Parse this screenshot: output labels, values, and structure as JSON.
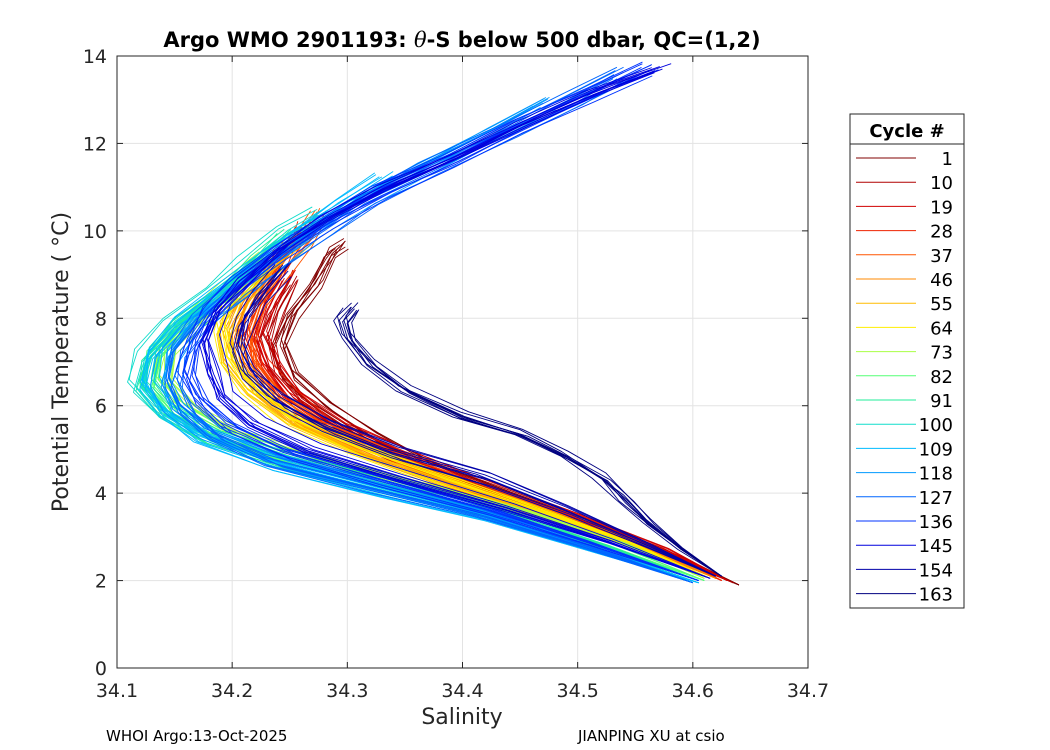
{
  "chart_data": {
    "type": "line",
    "title_prefix": "Argo WMO 2901193: ",
    "title_theta": "θ",
    "title_suffix": "-S below 500 dbar,  QC=(1,2)",
    "xlabel": "Salinity",
    "ylabel": "Potential Temperature ( °C)",
    "xlim": [
      34.1,
      34.7
    ],
    "ylim": [
      0,
      14
    ],
    "xticks": [
      34.1,
      34.2,
      34.3,
      34.4,
      34.5,
      34.6,
      34.7
    ],
    "xtick_labels": [
      "34.1",
      "34.2",
      "34.3",
      "34.4",
      "34.5",
      "34.6",
      "34.7"
    ],
    "yticks": [
      0,
      2,
      4,
      6,
      8,
      10,
      12,
      14
    ],
    "ytick_labels": [
      "0",
      "2",
      "4",
      "6",
      "8",
      "10",
      "12",
      "14"
    ],
    "grid": true,
    "legend_title": "Cycle #",
    "legend_position": "outside-right",
    "legend": [
      {
        "label": "1",
        "color": "#800000"
      },
      {
        "label": "10",
        "color": "#b00000"
      },
      {
        "label": "19",
        "color": "#d00000"
      },
      {
        "label": "28",
        "color": "#ee2200"
      },
      {
        "label": "37",
        "color": "#ff5500"
      },
      {
        "label": "46",
        "color": "#ff8800"
      },
      {
        "label": "55",
        "color": "#ffbb00"
      },
      {
        "label": "64",
        "color": "#ffee00"
      },
      {
        "label": "73",
        "color": "#aaff44"
      },
      {
        "label": "82",
        "color": "#55ff77"
      },
      {
        "label": "91",
        "color": "#22ee99"
      },
      {
        "label": "100",
        "color": "#11ddcc"
      },
      {
        "label": "109",
        "color": "#00bbff"
      },
      {
        "label": "118",
        "color": "#0099ff"
      },
      {
        "label": "127",
        "color": "#0066ff"
      },
      {
        "label": "136",
        "color": "#0033ff"
      },
      {
        "label": "145",
        "color": "#0000dd"
      },
      {
        "label": "154",
        "color": "#0000aa"
      },
      {
        "label": "163",
        "color": "#000080"
      }
    ],
    "series": [
      {
        "name": "1",
        "color": "#800000",
        "points": [
          [
            34.64,
            1.9
          ],
          [
            34.59,
            2.5
          ],
          [
            34.52,
            3.2
          ],
          [
            34.44,
            3.9
          ],
          [
            34.37,
            4.6
          ],
          [
            34.32,
            5.3
          ],
          [
            34.28,
            6.0
          ],
          [
            34.25,
            6.7
          ],
          [
            34.24,
            7.4
          ],
          [
            34.25,
            8.1
          ],
          [
            34.27,
            8.8
          ],
          [
            34.285,
            9.5
          ],
          [
            34.295,
            9.7
          ]
        ]
      },
      {
        "name": "10",
        "color": "#b00000",
        "points": [
          [
            34.635,
            1.95
          ],
          [
            34.58,
            2.6
          ],
          [
            34.51,
            3.3
          ],
          [
            34.43,
            4.0
          ],
          [
            34.36,
            4.7
          ],
          [
            34.3,
            5.4
          ],
          [
            34.26,
            6.1
          ],
          [
            34.24,
            6.8
          ],
          [
            34.23,
            7.5
          ],
          [
            34.24,
            8.2
          ],
          [
            34.255,
            8.9
          ]
        ]
      },
      {
        "name": "19",
        "color": "#d00000",
        "points": [
          [
            34.63,
            2.0
          ],
          [
            34.575,
            2.7
          ],
          [
            34.5,
            3.4
          ],
          [
            34.42,
            4.1
          ],
          [
            34.35,
            4.8
          ],
          [
            34.29,
            5.5
          ],
          [
            34.25,
            6.2
          ],
          [
            34.23,
            6.9
          ],
          [
            34.22,
            7.6
          ],
          [
            34.23,
            8.3
          ],
          [
            34.245,
            9.0
          ]
        ]
      },
      {
        "name": "28",
        "color": "#ee2200",
        "points": [
          [
            34.625,
            2.0
          ],
          [
            34.57,
            2.7
          ],
          [
            34.495,
            3.45
          ],
          [
            34.415,
            4.15
          ],
          [
            34.34,
            4.85
          ],
          [
            34.28,
            5.55
          ],
          [
            34.245,
            6.25
          ],
          [
            34.225,
            6.95
          ],
          [
            34.215,
            7.65
          ],
          [
            34.225,
            8.35
          ],
          [
            34.24,
            9.05
          ],
          [
            34.255,
            9.75
          ],
          [
            34.26,
            10.1
          ]
        ]
      },
      {
        "name": "37",
        "color": "#ff5500",
        "points": [
          [
            34.62,
            2.05
          ],
          [
            34.56,
            2.75
          ],
          [
            34.48,
            3.5
          ],
          [
            34.4,
            4.2
          ],
          [
            34.33,
            4.9
          ],
          [
            34.27,
            5.6
          ],
          [
            34.235,
            6.3
          ],
          [
            34.215,
            7.0
          ],
          [
            34.21,
            7.7
          ],
          [
            34.22,
            8.4
          ],
          [
            34.24,
            9.1
          ],
          [
            34.26,
            9.8
          ],
          [
            34.275,
            10.4
          ]
        ]
      },
      {
        "name": "46",
        "color": "#ff8800",
        "points": [
          [
            34.62,
            2.05
          ],
          [
            34.555,
            2.8
          ],
          [
            34.475,
            3.55
          ],
          [
            34.395,
            4.25
          ],
          [
            34.32,
            4.95
          ],
          [
            34.26,
            5.65
          ],
          [
            34.225,
            6.35
          ],
          [
            34.205,
            7.05
          ],
          [
            34.2,
            7.75
          ],
          [
            34.21,
            8.45
          ],
          [
            34.23,
            9.15
          ],
          [
            34.25,
            9.85
          ]
        ]
      },
      {
        "name": "55",
        "color": "#ffbb00",
        "points": [
          [
            34.615,
            2.05
          ],
          [
            34.55,
            2.8
          ],
          [
            34.47,
            3.55
          ],
          [
            34.39,
            4.3
          ],
          [
            34.315,
            5.0
          ],
          [
            34.255,
            5.7
          ],
          [
            34.22,
            6.4
          ],
          [
            34.2,
            7.1
          ],
          [
            34.195,
            7.8
          ],
          [
            34.21,
            8.5
          ],
          [
            34.235,
            9.2
          ],
          [
            34.265,
            9.9
          ]
        ]
      },
      {
        "name": "64",
        "color": "#ffee00",
        "points": [
          [
            34.615,
            2.05
          ],
          [
            34.545,
            2.85
          ],
          [
            34.465,
            3.6
          ],
          [
            34.385,
            4.3
          ],
          [
            34.31,
            5.0
          ],
          [
            34.25,
            5.7
          ],
          [
            34.215,
            6.4
          ],
          [
            34.195,
            7.1
          ],
          [
            34.19,
            7.8
          ],
          [
            34.2,
            8.5
          ],
          [
            34.22,
            9.2
          ]
        ]
      },
      {
        "name": "73",
        "color": "#aaff44",
        "points": [
          [
            34.61,
            2.05
          ],
          [
            34.54,
            2.85
          ],
          [
            34.45,
            3.6
          ],
          [
            34.36,
            4.2
          ],
          [
            34.27,
            4.8
          ],
          [
            34.2,
            5.4
          ],
          [
            34.16,
            6.0
          ],
          [
            34.14,
            6.6
          ],
          [
            34.145,
            7.3
          ],
          [
            34.17,
            8.0
          ],
          [
            34.2,
            8.7
          ],
          [
            34.23,
            9.4
          ]
        ]
      },
      {
        "name": "82",
        "color": "#55ff77",
        "points": [
          [
            34.61,
            2.0
          ],
          [
            34.53,
            2.8
          ],
          [
            34.44,
            3.55
          ],
          [
            34.35,
            4.15
          ],
          [
            34.26,
            4.75
          ],
          [
            34.19,
            5.35
          ],
          [
            34.15,
            5.95
          ],
          [
            34.13,
            6.55
          ],
          [
            34.135,
            7.25
          ],
          [
            34.16,
            7.95
          ],
          [
            34.195,
            8.65
          ],
          [
            34.225,
            9.35
          ]
        ]
      },
      {
        "name": "91",
        "color": "#22ee99",
        "points": [
          [
            34.605,
            2.0
          ],
          [
            34.525,
            2.75
          ],
          [
            34.435,
            3.5
          ],
          [
            34.345,
            4.1
          ],
          [
            34.255,
            4.7
          ],
          [
            34.185,
            5.3
          ],
          [
            34.145,
            5.9
          ],
          [
            34.125,
            6.5
          ],
          [
            34.13,
            7.2
          ],
          [
            34.155,
            7.9
          ],
          [
            34.19,
            8.6
          ],
          [
            34.22,
            9.3
          ],
          [
            34.245,
            9.9
          ]
        ]
      },
      {
        "name": "100",
        "color": "#11ddcc",
        "points": [
          [
            34.605,
            1.95
          ],
          [
            34.52,
            2.7
          ],
          [
            34.43,
            3.45
          ],
          [
            34.34,
            4.05
          ],
          [
            34.25,
            4.65
          ],
          [
            34.18,
            5.25
          ],
          [
            34.14,
            5.85
          ],
          [
            34.12,
            6.45
          ],
          [
            34.125,
            7.15
          ],
          [
            34.15,
            7.85
          ],
          [
            34.185,
            8.55
          ],
          [
            34.215,
            9.25
          ],
          [
            34.25,
            9.95
          ],
          [
            34.28,
            10.4
          ]
        ]
      },
      {
        "name": "109",
        "color": "#00bbff",
        "points": [
          [
            34.605,
            1.95
          ],
          [
            34.515,
            2.7
          ],
          [
            34.425,
            3.45
          ],
          [
            34.335,
            4.05
          ],
          [
            34.245,
            4.65
          ],
          [
            34.175,
            5.3
          ],
          [
            34.145,
            5.9
          ],
          [
            34.13,
            6.5
          ],
          [
            34.135,
            7.2
          ],
          [
            34.16,
            7.9
          ],
          [
            34.195,
            8.6
          ],
          [
            34.23,
            9.3
          ],
          [
            34.265,
            10.0
          ],
          [
            34.3,
            10.6
          ],
          [
            34.335,
            11.2
          ]
        ]
      },
      {
        "name": "118",
        "color": "#0099ff",
        "points": [
          [
            34.6,
            1.95
          ],
          [
            34.51,
            2.75
          ],
          [
            34.42,
            3.5
          ],
          [
            34.33,
            4.1
          ],
          [
            34.24,
            4.7
          ],
          [
            34.18,
            5.3
          ],
          [
            34.15,
            5.9
          ],
          [
            34.14,
            6.5
          ],
          [
            34.145,
            7.2
          ],
          [
            34.165,
            7.9
          ],
          [
            34.2,
            8.6
          ],
          [
            34.235,
            9.3
          ],
          [
            34.27,
            10.0
          ],
          [
            34.31,
            10.7
          ],
          [
            34.36,
            11.4
          ],
          [
            34.42,
            12.2
          ],
          [
            34.47,
            12.9
          ]
        ]
      },
      {
        "name": "127",
        "color": "#0066ff",
        "points": [
          [
            34.6,
            1.95
          ],
          [
            34.505,
            2.8
          ],
          [
            34.415,
            3.55
          ],
          [
            34.325,
            4.15
          ],
          [
            34.235,
            4.75
          ],
          [
            34.185,
            5.35
          ],
          [
            34.16,
            5.95
          ],
          [
            34.15,
            6.55
          ],
          [
            34.155,
            7.25
          ],
          [
            34.175,
            7.95
          ],
          [
            34.205,
            8.65
          ],
          [
            34.24,
            9.35
          ],
          [
            34.28,
            10.05
          ],
          [
            34.32,
            10.75
          ],
          [
            34.375,
            11.45
          ],
          [
            34.44,
            12.3
          ],
          [
            34.495,
            13.0
          ],
          [
            34.54,
            13.6
          ]
        ]
      },
      {
        "name": "136",
        "color": "#0033ff",
        "points": [
          [
            34.605,
            2.0
          ],
          [
            34.51,
            2.85
          ],
          [
            34.42,
            3.6
          ],
          [
            34.33,
            4.25
          ],
          [
            34.245,
            4.9
          ],
          [
            34.195,
            5.5
          ],
          [
            34.17,
            6.1
          ],
          [
            34.16,
            6.7
          ],
          [
            34.165,
            7.4
          ],
          [
            34.18,
            8.1
          ],
          [
            34.205,
            8.8
          ],
          [
            34.24,
            9.5
          ],
          [
            34.28,
            10.2
          ],
          [
            34.33,
            10.9
          ],
          [
            34.39,
            11.6
          ],
          [
            34.45,
            12.4
          ],
          [
            34.51,
            13.1
          ],
          [
            34.56,
            13.7
          ]
        ]
      },
      {
        "name": "145",
        "color": "#0000dd",
        "points": [
          [
            34.615,
            2.05
          ],
          [
            34.53,
            2.9
          ],
          [
            34.44,
            3.7
          ],
          [
            34.35,
            4.4
          ],
          [
            34.27,
            5.05
          ],
          [
            34.22,
            5.65
          ],
          [
            34.195,
            6.25
          ],
          [
            34.185,
            6.85
          ],
          [
            34.18,
            7.55
          ],
          [
            34.19,
            8.25
          ],
          [
            34.215,
            8.95
          ],
          [
            34.245,
            9.65
          ],
          [
            34.285,
            10.35
          ],
          [
            34.335,
            11.05
          ],
          [
            34.395,
            11.75
          ],
          [
            34.455,
            12.5
          ],
          [
            34.515,
            13.2
          ],
          [
            34.57,
            13.75
          ]
        ]
      },
      {
        "name": "154",
        "color": "#0000aa",
        "points": [
          [
            34.62,
            2.1
          ],
          [
            34.56,
            2.8
          ],
          [
            34.49,
            3.6
          ],
          [
            34.42,
            4.3
          ],
          [
            34.34,
            4.9
          ],
          [
            34.28,
            5.5
          ],
          [
            34.24,
            6.1
          ],
          [
            34.215,
            6.7
          ],
          [
            34.205,
            7.3
          ],
          [
            34.21,
            7.9
          ],
          [
            34.225,
            8.5
          ],
          [
            34.245,
            9.1
          ]
        ]
      },
      {
        "name": "163",
        "color": "#000080",
        "points": [
          [
            34.625,
            2.1
          ],
          [
            34.59,
            2.7
          ],
          [
            34.56,
            3.3
          ],
          [
            34.54,
            3.8
          ],
          [
            34.52,
            4.3
          ],
          [
            34.49,
            4.8
          ],
          [
            34.45,
            5.3
          ],
          [
            34.4,
            5.7
          ],
          [
            34.35,
            6.3
          ],
          [
            34.32,
            6.9
          ],
          [
            34.3,
            7.5
          ],
          [
            34.295,
            7.9
          ],
          [
            34.305,
            8.2
          ]
        ]
      }
    ]
  },
  "footer": {
    "left": "WHOI Argo:13-Oct-2025",
    "right": "JIANPING XU at csio"
  }
}
